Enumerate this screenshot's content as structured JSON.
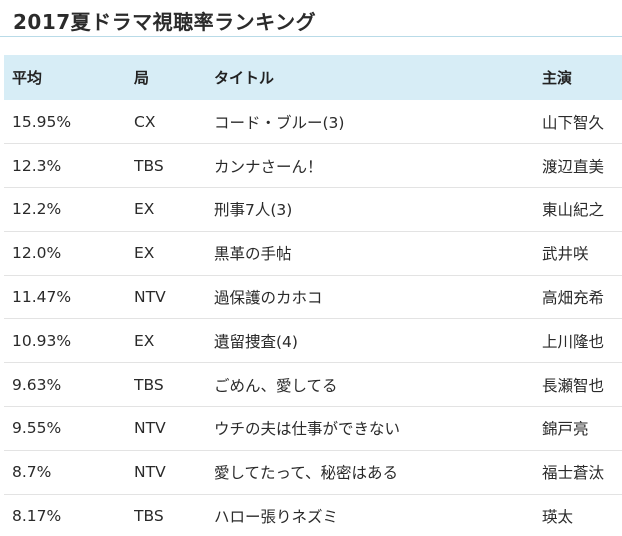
{
  "title": "2017夏ドラマ視聴率ランキング",
  "headers": {
    "average": "平均",
    "station": "局",
    "title": "タイトル",
    "cast": "主演"
  },
  "rows": [
    {
      "average": "15.95%",
      "station": "CX",
      "title": "コード・ブルー(3)",
      "cast": "山下智久"
    },
    {
      "average": "12.3%",
      "station": "TBS",
      "title": "カンナさーん！",
      "cast": "渡辺直美"
    },
    {
      "average": "12.2%",
      "station": "EX",
      "title": "刑事7人(3)",
      "cast": "東山紀之"
    },
    {
      "average": "12.0%",
      "station": "EX",
      "title": "黒革の手帖",
      "cast": "武井咲"
    },
    {
      "average": "11.47%",
      "station": "NTV",
      "title": "過保護のカホコ",
      "cast": "高畑充希"
    },
    {
      "average": "10.93%",
      "station": "EX",
      "title": "遺留捜査(4)",
      "cast": "上川隆也"
    },
    {
      "average": "9.63%",
      "station": "TBS",
      "title": "ごめん、愛してる",
      "cast": "長瀬智也"
    },
    {
      "average": "9.55%",
      "station": "NTV",
      "title": "ウチの夫は仕事ができない",
      "cast": "錦戸亮"
    },
    {
      "average": "8.7%",
      "station": "NTV",
      "title": "愛してたって、秘密はある",
      "cast": "福士蒼汰"
    },
    {
      "average": "8.17%",
      "station": "TBS",
      "title": "ハロー張りネズミ",
      "cast": "瑛太"
    }
  ]
}
